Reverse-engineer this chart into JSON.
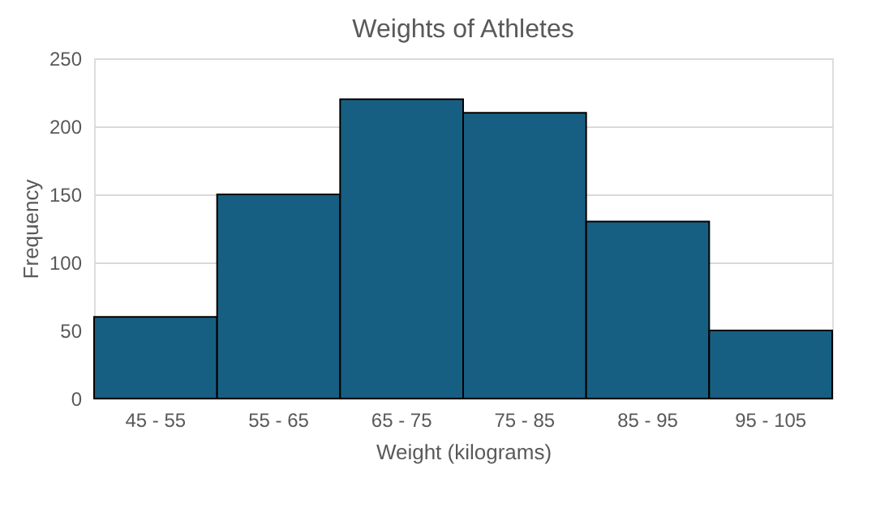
{
  "chart_data": {
    "type": "bar",
    "title": "Weights of Athletes",
    "xlabel": "Weight (kilograms)",
    "ylabel": "Frequency",
    "categories": [
      "45 - 55",
      "55 - 65",
      "65 - 75",
      "75 - 85",
      "85 - 95",
      "95 - 105"
    ],
    "values": [
      60,
      150,
      220,
      210,
      130,
      50
    ],
    "color": "#175f82",
    "ylim": [
      0,
      250
    ],
    "yticks": [
      0,
      50,
      100,
      150,
      200,
      250
    ],
    "grid": "y"
  }
}
